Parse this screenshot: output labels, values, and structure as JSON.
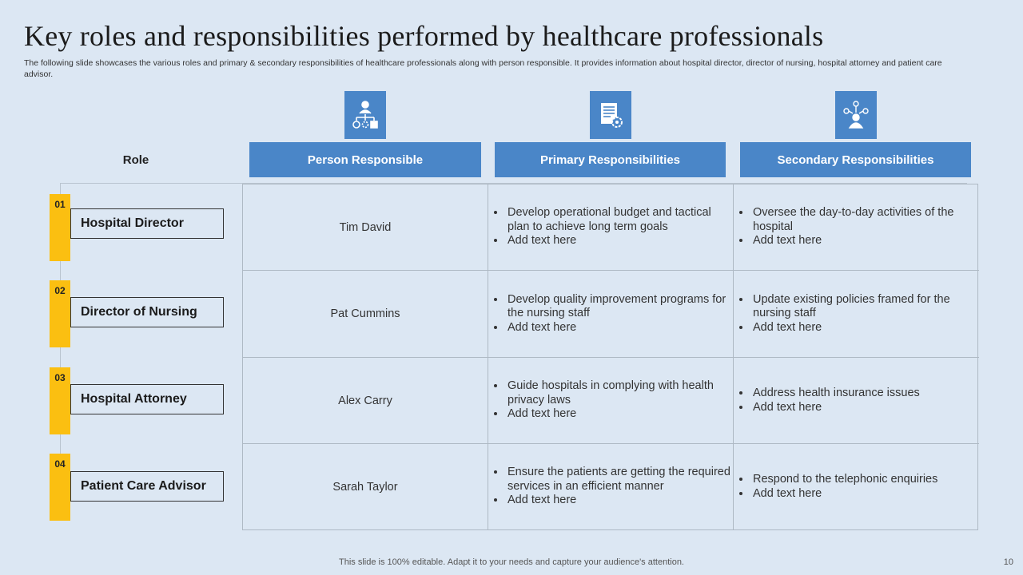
{
  "title": "Key roles and responsibilities performed by healthcare professionals",
  "subtitle": "The following slide showcases the various roles and primary & secondary responsibilities of healthcare professionals along with person responsible. It provides information about hospital director, director of nursing, hospital attorney and patient care advisor.",
  "headers": {
    "role": "Role",
    "person": "Person Responsible",
    "primary": "Primary Responsibilities",
    "secondary": "Secondary Responsibilities"
  },
  "icons": [
    "org-chart-icon",
    "document-gear-icon",
    "user-network-icon"
  ],
  "rows": [
    {
      "num": "01",
      "role": "Hospital Director",
      "person": "Tim David",
      "primary": [
        "Develop operational budget and tactical plan to achieve long term goals",
        "Add text here"
      ],
      "secondary": [
        "Oversee the day-to-day activities of the hospital",
        "Add text here"
      ]
    },
    {
      "num": "02",
      "role": "Director of Nursing",
      "person": "Pat Cummins",
      "primary": [
        "Develop quality improvement programs for the nursing staff",
        "Add text here"
      ],
      "secondary": [
        "Update existing policies framed for the nursing staff",
        "Add text here"
      ]
    },
    {
      "num": "03",
      "role": "Hospital Attorney",
      "person": "Alex Carry",
      "primary": [
        "Guide hospitals in complying with health privacy laws",
        "Add text here"
      ],
      "secondary": [
        "Address health insurance issues",
        "Add text here"
      ]
    },
    {
      "num": "04",
      "role": "Patient Care Advisor",
      "person": "Sarah Taylor",
      "primary": [
        "Ensure the patients are getting the required services in an efficient manner",
        "Add text here"
      ],
      "secondary": [
        "Respond to the telephonic enquiries",
        "Add text here"
      ]
    }
  ],
  "colors": {
    "accent": "#4a86c8",
    "number_bar": "#fbbf11",
    "background": "#dce7f3"
  },
  "footer": "This slide is 100% editable. Adapt it to your needs and capture your audience's attention.",
  "page_number": "10"
}
